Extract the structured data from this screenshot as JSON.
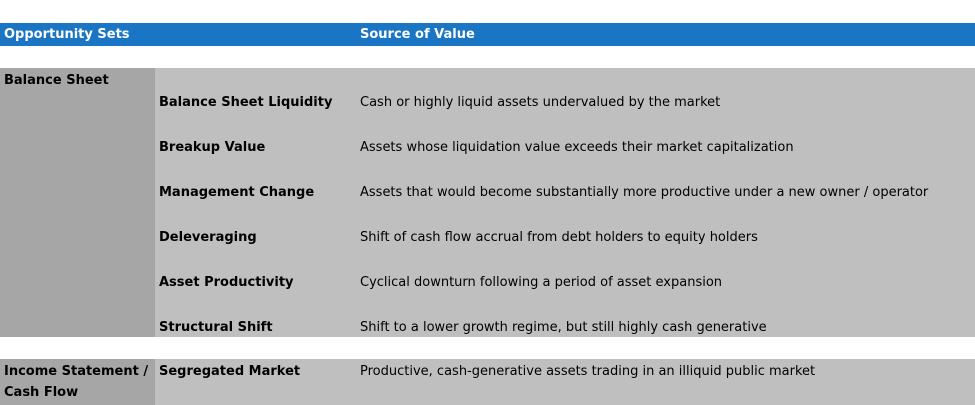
{
  "header": {
    "col1": "Opportunity Sets",
    "col2": "Source of Value"
  },
  "groups": [
    {
      "label": "Balance Sheet",
      "rows": [
        {
          "name": "Balance Sheet Liquidity",
          "desc": "Cash or highly liquid assets undervalued by the market"
        },
        {
          "name": "Breakup Value",
          "desc": "Assets whose liquidation value exceeds their market capitalization"
        },
        {
          "name": "Management Change",
          "desc": "Assets that would become substantially more productive under a new owner / operator"
        },
        {
          "name": "Deleveraging",
          "desc": "Shift of cash flow accrual from debt holders to equity holders"
        },
        {
          "name": "Asset Productivity",
          "desc": "Cyclical downturn following a period of asset expansion"
        },
        {
          "name": "Structural Shift",
          "desc": "Shift to a lower growth regime, but still highly cash generative"
        }
      ]
    },
    {
      "label_line1": "Income Statement /",
      "label_line2": "Cash Flow",
      "rows": [
        {
          "name": "Segregated Market",
          "desc": "Productive, cash-generative assets trading in an illiquid public market"
        }
      ]
    }
  ],
  "colors": {
    "header_bg": "#1a75c4",
    "band_bg": "#bfbfbf",
    "label_bg": "#a6a6a6"
  }
}
